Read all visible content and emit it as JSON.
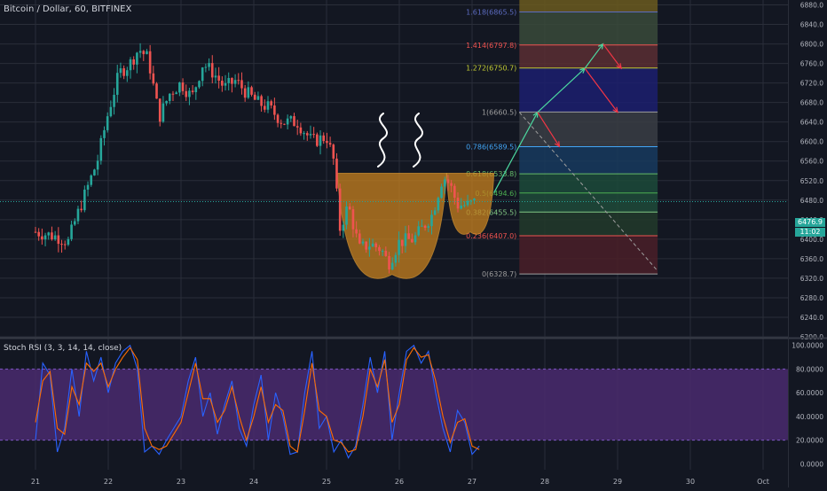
{
  "header": {
    "symbol_line": "Bitcoin / Dollar, 60, BITFINEX"
  },
  "indicator": {
    "label": "Stoch RSI (3, 3, 14, 14, close)"
  },
  "price_tag": {
    "value": "6476.9",
    "time": "11:02"
  },
  "colors": {
    "background": "#131722",
    "grid": "#2a2e39",
    "up": "#26a69a",
    "down": "#ef5350",
    "pattern_fill": "#c8811e",
    "rsi_band": "#4a2a6e",
    "rsi_k": "#2962ff",
    "rsi_d": "#ff6d00",
    "arrow_up": "#4cd9a0",
    "arrow_down": "#f23645",
    "sketch": "#ffffff"
  },
  "chart_data": [
    {
      "type": "candlestick",
      "title": "Bitcoin / Dollar, 60, BITFINEX",
      "x_ticks": [
        "21",
        "22",
        "23",
        "24",
        "25",
        "26",
        "27",
        "28",
        "29",
        "30",
        "Oct"
      ],
      "y_ticks": [
        "6200.0",
        "6240.0",
        "6280.0",
        "6320.0",
        "6360.0",
        "6400.0",
        "6440.0",
        "6480.0",
        "6520.0",
        "6560.0",
        "6600.0",
        "6640.0",
        "6680.0",
        "6720.0",
        "6760.0",
        "6800.0",
        "6840.0",
        "6880.0"
      ],
      "ylim": [
        6200,
        6890
      ],
      "last_price": 6476.9,
      "price_path": [
        [
          0,
          6415
        ],
        [
          0.3,
          6405
        ],
        [
          0.45,
          6395
        ],
        [
          0.55,
          6440
        ],
        [
          0.7,
          6500
        ],
        [
          0.85,
          6560
        ],
        [
          1.0,
          6660
        ],
        [
          1.15,
          6740
        ],
        [
          1.3,
          6760
        ],
        [
          1.42,
          6790
        ],
        [
          1.55,
          6770
        ],
        [
          1.7,
          6650
        ],
        [
          1.85,
          6700
        ],
        [
          2.0,
          6720
        ],
        [
          2.15,
          6690
        ],
        [
          2.3,
          6760
        ],
        [
          2.45,
          6740
        ],
        [
          2.6,
          6710
        ],
        [
          2.75,
          6725
        ],
        [
          2.9,
          6700
        ],
        [
          3.05,
          6680
        ],
        [
          3.2,
          6670
        ],
        [
          3.4,
          6640
        ],
        [
          3.6,
          6640
        ],
        [
          3.8,
          6600
        ],
        [
          4.0,
          6610
        ],
        [
          4.1,
          6560
        ],
        [
          4.18,
          6420
        ],
        [
          4.3,
          6470
        ],
        [
          4.45,
          6380
        ],
        [
          4.6,
          6390
        ],
        [
          4.75,
          6380
        ],
        [
          4.85,
          6350
        ],
        [
          5.0,
          6395
        ],
        [
          5.2,
          6400
        ],
        [
          5.45,
          6450
        ],
        [
          5.6,
          6530
        ],
        [
          5.7,
          6510
        ],
        [
          5.8,
          6470
        ],
        [
          5.95,
          6470
        ],
        [
          6.05,
          6476.9
        ]
      ],
      "patterns": [
        {
          "name": "cup",
          "left_x": 4.15,
          "right_x": 5.65,
          "rim_price": 6535,
          "bottom_price": 6328
        },
        {
          "name": "handle",
          "left_x": 5.65,
          "right_x": 6.3,
          "rim_price": 6535,
          "bottom_price": 6415
        }
      ],
      "fibonacci": {
        "x_range": [
          6.65,
          8.55
        ],
        "levels": [
          {
            "label": "1.618(6865.5)",
            "ratio": 1.618,
            "price": 6865.5,
            "color": "#5c6bc0"
          },
          {
            "label": "1.414(6797.8)",
            "ratio": 1.414,
            "price": 6797.8,
            "color": "#ef5350"
          },
          {
            "label": "1.272(6750.7)",
            "ratio": 1.272,
            "price": 6750.7,
            "color": "#c0ca33"
          },
          {
            "label": "1(6660.5)",
            "ratio": 1.0,
            "price": 6660.5,
            "color": "#9e9e9e"
          },
          {
            "label": "0.786(6589.5)",
            "ratio": 0.786,
            "price": 6589.5,
            "color": "#42a5f5"
          },
          {
            "label": "0.618(6533.8)",
            "ratio": 0.618,
            "price": 6533.8,
            "color": "#66bb6a"
          },
          {
            "label": "0.5(6494.6)",
            "ratio": 0.5,
            "price": 6494.6,
            "color": "#4caf50"
          },
          {
            "label": "0.382(6455.5)",
            "ratio": 0.382,
            "price": 6455.5,
            "color": "#81c784"
          },
          {
            "label": "0.236(6407.0)",
            "ratio": 0.236,
            "price": 6407.0,
            "color": "#ef5350"
          },
          {
            "label": "0(6328.7)",
            "ratio": 0.0,
            "price": 6328.7,
            "color": "#9e9e9e"
          }
        ],
        "bands": [
          {
            "from": 6865.5,
            "to": 6890,
            "color": "#6b5a1e"
          },
          {
            "from": 6797.8,
            "to": 6865.5,
            "color": "#3a4a3a"
          },
          {
            "from": 6750.7,
            "to": 6797.8,
            "color": "#5a2e32"
          },
          {
            "from": 6660.5,
            "to": 6750.7,
            "color": "#1c1f6e"
          },
          {
            "from": 6589.5,
            "to": 6660.5,
            "color": "#3a3d44"
          },
          {
            "from": 6533.8,
            "to": 6589.5,
            "color": "#173a5e"
          },
          {
            "from": 6494.6,
            "to": 6533.8,
            "color": "#1c4a3a"
          },
          {
            "from": 6455.5,
            "to": 6494.6,
            "color": "#1f4a38"
          },
          {
            "from": 6407.0,
            "to": 6455.5,
            "color": "#223a2a"
          },
          {
            "from": 6328.7,
            "to": 6407.0,
            "color": "#4a1e28"
          }
        ]
      },
      "projection_up": [
        [
          6.3,
          6495
        ],
        [
          6.9,
          6660
        ],
        [
          7.55,
          6750
        ],
        [
          7.8,
          6800
        ]
      ],
      "projection_down": [
        [
          [
            6.9,
            6660
          ],
          [
            7.2,
            6590
          ]
        ],
        [
          [
            7.55,
            6750
          ],
          [
            8.0,
            6660
          ]
        ],
        [
          [
            7.8,
            6800
          ],
          [
            8.05,
            6750
          ]
        ]
      ],
      "trend_dashed": [
        [
          6.65,
          6660
        ],
        [
          8.55,
          6335
        ]
      ]
    },
    {
      "type": "line",
      "title": "Stoch RSI (3, 3, 14, 14, close)",
      "y_ticks": [
        "0.0000",
        "20.0000",
        "40.0000",
        "60.0000",
        "80.0000",
        "100.0000"
      ],
      "ylim": [
        -5,
        105
      ],
      "band": [
        20,
        80
      ],
      "series": [
        {
          "name": "K",
          "color": "#2962ff",
          "x": [
            0,
            0.1,
            0.2,
            0.3,
            0.4,
            0.5,
            0.6,
            0.7,
            0.8,
            0.9,
            1.0,
            1.1,
            1.2,
            1.3,
            1.4,
            1.5,
            1.6,
            1.7,
            1.8,
            1.9,
            2.0,
            2.1,
            2.2,
            2.3,
            2.4,
            2.5,
            2.6,
            2.7,
            2.8,
            2.9,
            3.0,
            3.1,
            3.2,
            3.3,
            3.4,
            3.5,
            3.6,
            3.7,
            3.8,
            3.9,
            4.0,
            4.1,
            4.2,
            4.3,
            4.4,
            4.5,
            4.6,
            4.7,
            4.8,
            4.9,
            5.0,
            5.1,
            5.2,
            5.3,
            5.4,
            5.5,
            5.6,
            5.7,
            5.8,
            5.9,
            6.0,
            6.1
          ],
          "y": [
            20,
            85,
            75,
            10,
            30,
            80,
            40,
            95,
            70,
            90,
            60,
            85,
            95,
            100,
            80,
            10,
            15,
            8,
            20,
            30,
            40,
            70,
            90,
            40,
            60,
            25,
            50,
            70,
            30,
            15,
            50,
            75,
            20,
            60,
            40,
            8,
            10,
            60,
            95,
            30,
            40,
            10,
            20,
            5,
            15,
            50,
            90,
            60,
            95,
            20,
            60,
            95,
            100,
            85,
            95,
            60,
            30,
            10,
            45,
            35,
            8,
            15
          ]
        },
        {
          "name": "D",
          "color": "#ff6d00",
          "x": [
            0,
            0.1,
            0.2,
            0.3,
            0.4,
            0.5,
            0.6,
            0.7,
            0.8,
            0.9,
            1.0,
            1.1,
            1.2,
            1.3,
            1.4,
            1.5,
            1.6,
            1.7,
            1.8,
            1.9,
            2.0,
            2.1,
            2.2,
            2.3,
            2.4,
            2.5,
            2.6,
            2.7,
            2.8,
            2.9,
            3.0,
            3.1,
            3.2,
            3.3,
            3.4,
            3.5,
            3.6,
            3.7,
            3.8,
            3.9,
            4.0,
            4.1,
            4.2,
            4.3,
            4.4,
            4.5,
            4.6,
            4.7,
            4.8,
            4.9,
            5.0,
            5.1,
            5.2,
            5.3,
            5.4,
            5.5,
            5.6,
            5.7,
            5.8,
            5.9,
            6.0,
            6.1
          ],
          "y": [
            35,
            70,
            78,
            30,
            25,
            65,
            50,
            85,
            78,
            85,
            65,
            80,
            90,
            98,
            88,
            30,
            15,
            12,
            15,
            25,
            35,
            60,
            85,
            55,
            55,
            35,
            45,
            65,
            40,
            20,
            40,
            65,
            35,
            50,
            45,
            15,
            10,
            45,
            85,
            45,
            40,
            20,
            18,
            10,
            12,
            40,
            80,
            65,
            88,
            35,
            50,
            88,
            98,
            90,
            92,
            70,
            40,
            18,
            35,
            38,
            15,
            12
          ]
        }
      ]
    }
  ]
}
